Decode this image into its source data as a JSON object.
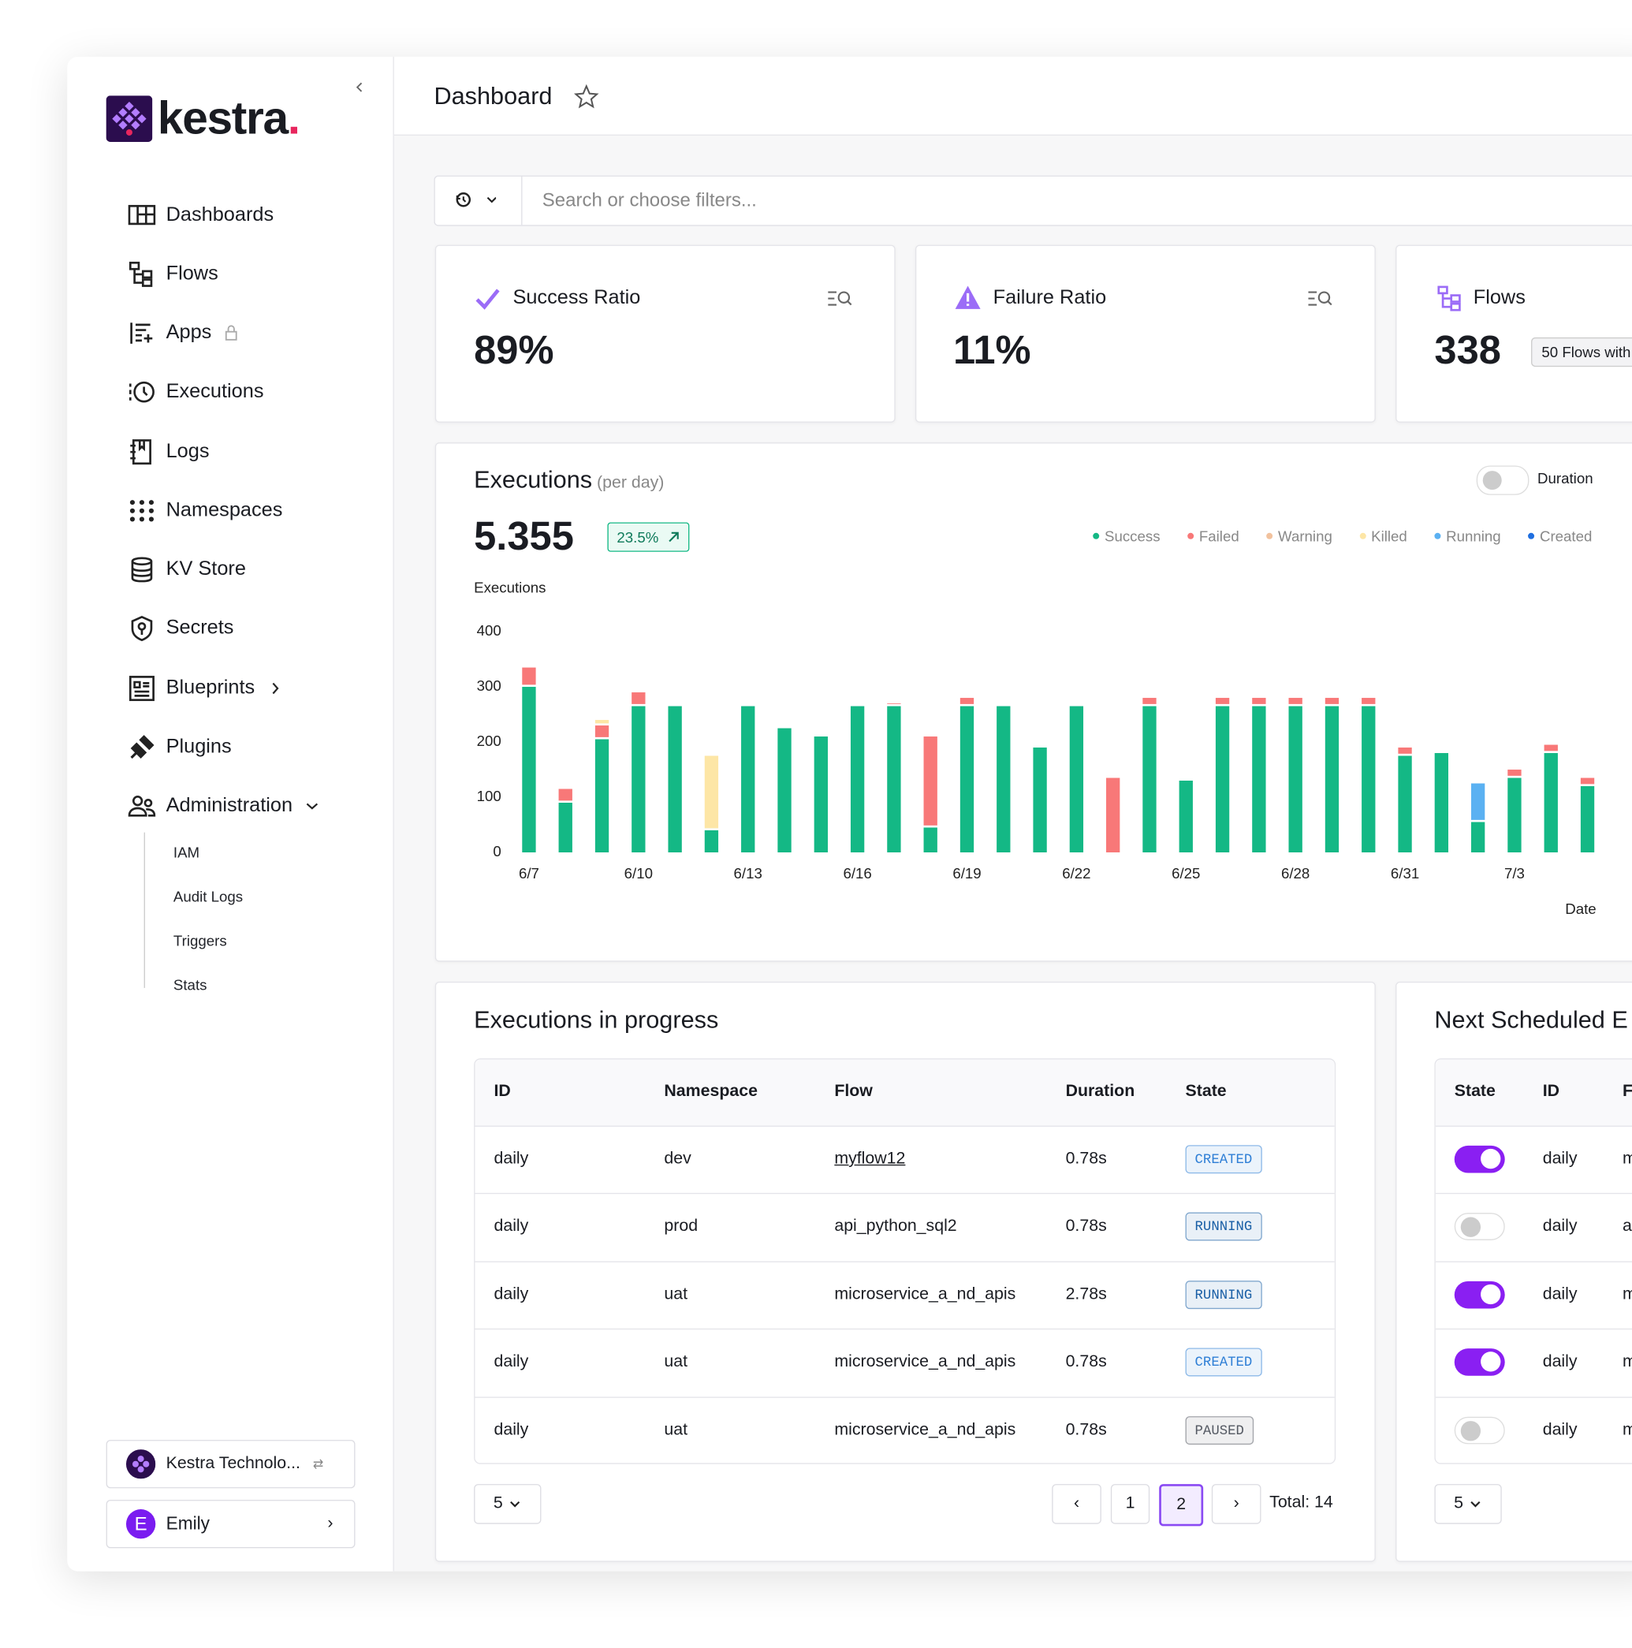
{
  "sidebar": {
    "brand": "kestra",
    "nav": [
      "Dashboards",
      "Flows",
      "Apps",
      "Executions",
      "Logs",
      "Namespaces",
      "KV Store",
      "Secrets",
      "Blueprints",
      "Plugins",
      "Administration"
    ],
    "admin_sub": [
      "IAM",
      "Audit Logs",
      "Triggers",
      "Stats"
    ],
    "tenant": "Kestra Technolo...",
    "user_initial": "E",
    "user": "Emily"
  },
  "header": {
    "title": "Dashboard"
  },
  "search": {
    "placeholder": "Search or choose filters..."
  },
  "kpis": [
    {
      "label": "Success Ratio",
      "value": "89%"
    },
    {
      "label": "Failure Ratio",
      "value": "11%"
    },
    {
      "label": "Flows",
      "value": "338",
      "badge": "50 Flows with"
    }
  ],
  "chart_data": {
    "type": "bar",
    "stacked": true,
    "title": "Executions",
    "subtitle": "(per day)",
    "total": "5.355",
    "trend": "23.5%",
    "toggle_label": "Duration",
    "y_label": "Executions",
    "x_label": "Date",
    "categories": [
      "6/7",
      null,
      null,
      "6/10",
      null,
      null,
      "6/13",
      null,
      null,
      "6/16",
      null,
      null,
      "6/19",
      null,
      null,
      "6/22",
      null,
      null,
      "6/25",
      null,
      null,
      "6/28",
      null,
      null,
      "6/31",
      null,
      null,
      "7/3",
      null,
      null
    ],
    "series": [
      {
        "name": "Success",
        "color": "#14b885",
        "values": [
          300,
          90,
          205,
          265,
          265,
          40,
          265,
          225,
          210,
          265,
          265,
          45,
          265,
          265,
          190,
          265,
          0,
          265,
          130,
          265,
          265,
          265,
          265,
          265,
          175,
          180,
          55,
          135,
          180,
          120
        ]
      },
      {
        "name": "Failed",
        "color": "#f87878",
        "values": [
          35,
          25,
          25,
          25,
          0,
          0,
          0,
          0,
          0,
          0,
          5,
          165,
          15,
          0,
          0,
          0,
          135,
          15,
          0,
          15,
          15,
          15,
          15,
          15,
          15,
          0,
          0,
          15,
          15,
          15
        ]
      },
      {
        "name": "Warning",
        "color": "#f2c29e",
        "values": [
          0,
          0,
          0,
          0,
          0,
          0,
          0,
          0,
          0,
          0,
          0,
          0,
          0,
          0,
          0,
          0,
          0,
          0,
          0,
          0,
          0,
          0,
          0,
          0,
          0,
          0,
          0,
          0,
          0,
          0
        ]
      },
      {
        "name": "Killed",
        "color": "#fde6a6",
        "values": [
          0,
          0,
          10,
          0,
          0,
          135,
          0,
          0,
          0,
          0,
          0,
          0,
          0,
          0,
          0,
          0,
          0,
          0,
          0,
          0,
          0,
          0,
          0,
          0,
          0,
          0,
          0,
          0,
          0,
          0
        ]
      },
      {
        "name": "Running",
        "color": "#5bb1f2",
        "values": [
          0,
          0,
          0,
          0,
          0,
          0,
          0,
          0,
          0,
          0,
          0,
          0,
          0,
          0,
          0,
          0,
          0,
          0,
          0,
          0,
          0,
          0,
          0,
          0,
          0,
          0,
          70,
          0,
          0,
          0
        ]
      },
      {
        "name": "Created",
        "color": "#1f6fe0",
        "values": [
          0,
          0,
          0,
          0,
          0,
          0,
          0,
          0,
          0,
          0,
          0,
          0,
          0,
          0,
          0,
          0,
          0,
          0,
          0,
          0,
          0,
          0,
          0,
          0,
          0,
          0,
          0,
          0,
          0,
          0
        ]
      }
    ],
    "ylim": [
      0,
      400
    ],
    "yticks": [
      0,
      100,
      200,
      300,
      400
    ]
  },
  "executions_table": {
    "title": "Executions in progress",
    "columns": [
      "ID",
      "Namespace",
      "Flow",
      "Duration",
      "State"
    ],
    "rows": [
      {
        "id": "daily",
        "namespace": "dev",
        "flow": "myflow12",
        "duration": "0.78s",
        "state": "CREATED",
        "state_color": "#2f7fd6",
        "link": true
      },
      {
        "id": "daily",
        "namespace": "prod",
        "flow": "api_python_sql2",
        "duration": "0.78s",
        "state": "RUNNING",
        "state_color": "#1a5fa6"
      },
      {
        "id": "daily",
        "namespace": "uat",
        "flow": "microservice_a_nd_apis",
        "duration": "2.78s",
        "state": "RUNNING",
        "state_color": "#1a5fa6"
      },
      {
        "id": "daily",
        "namespace": "uat",
        "flow": "microservice_a_nd_apis",
        "duration": "0.78s",
        "state": "CREATED",
        "state_color": "#2f7fd6"
      },
      {
        "id": "daily",
        "namespace": "uat",
        "flow": "microservice_a_nd_apis",
        "duration": "0.78s",
        "state": "PAUSED",
        "state_color": "#555a63"
      }
    ],
    "page_size": "5",
    "pages": [
      {
        "label": "1",
        "active": false
      },
      {
        "label": "2",
        "active": true
      }
    ],
    "total": "Total: 14"
  },
  "scheduled": {
    "title": "Next Scheduled E",
    "columns": [
      "State",
      "ID",
      "F"
    ],
    "rows": [
      {
        "enabled": true,
        "id": "daily",
        "flow": "m"
      },
      {
        "enabled": false,
        "id": "daily",
        "flow": "a"
      },
      {
        "enabled": true,
        "id": "daily",
        "flow": "m"
      },
      {
        "enabled": true,
        "id": "daily",
        "flow": "m"
      },
      {
        "enabled": false,
        "id": "daily",
        "flow": "m"
      }
    ],
    "page_size": "5"
  }
}
